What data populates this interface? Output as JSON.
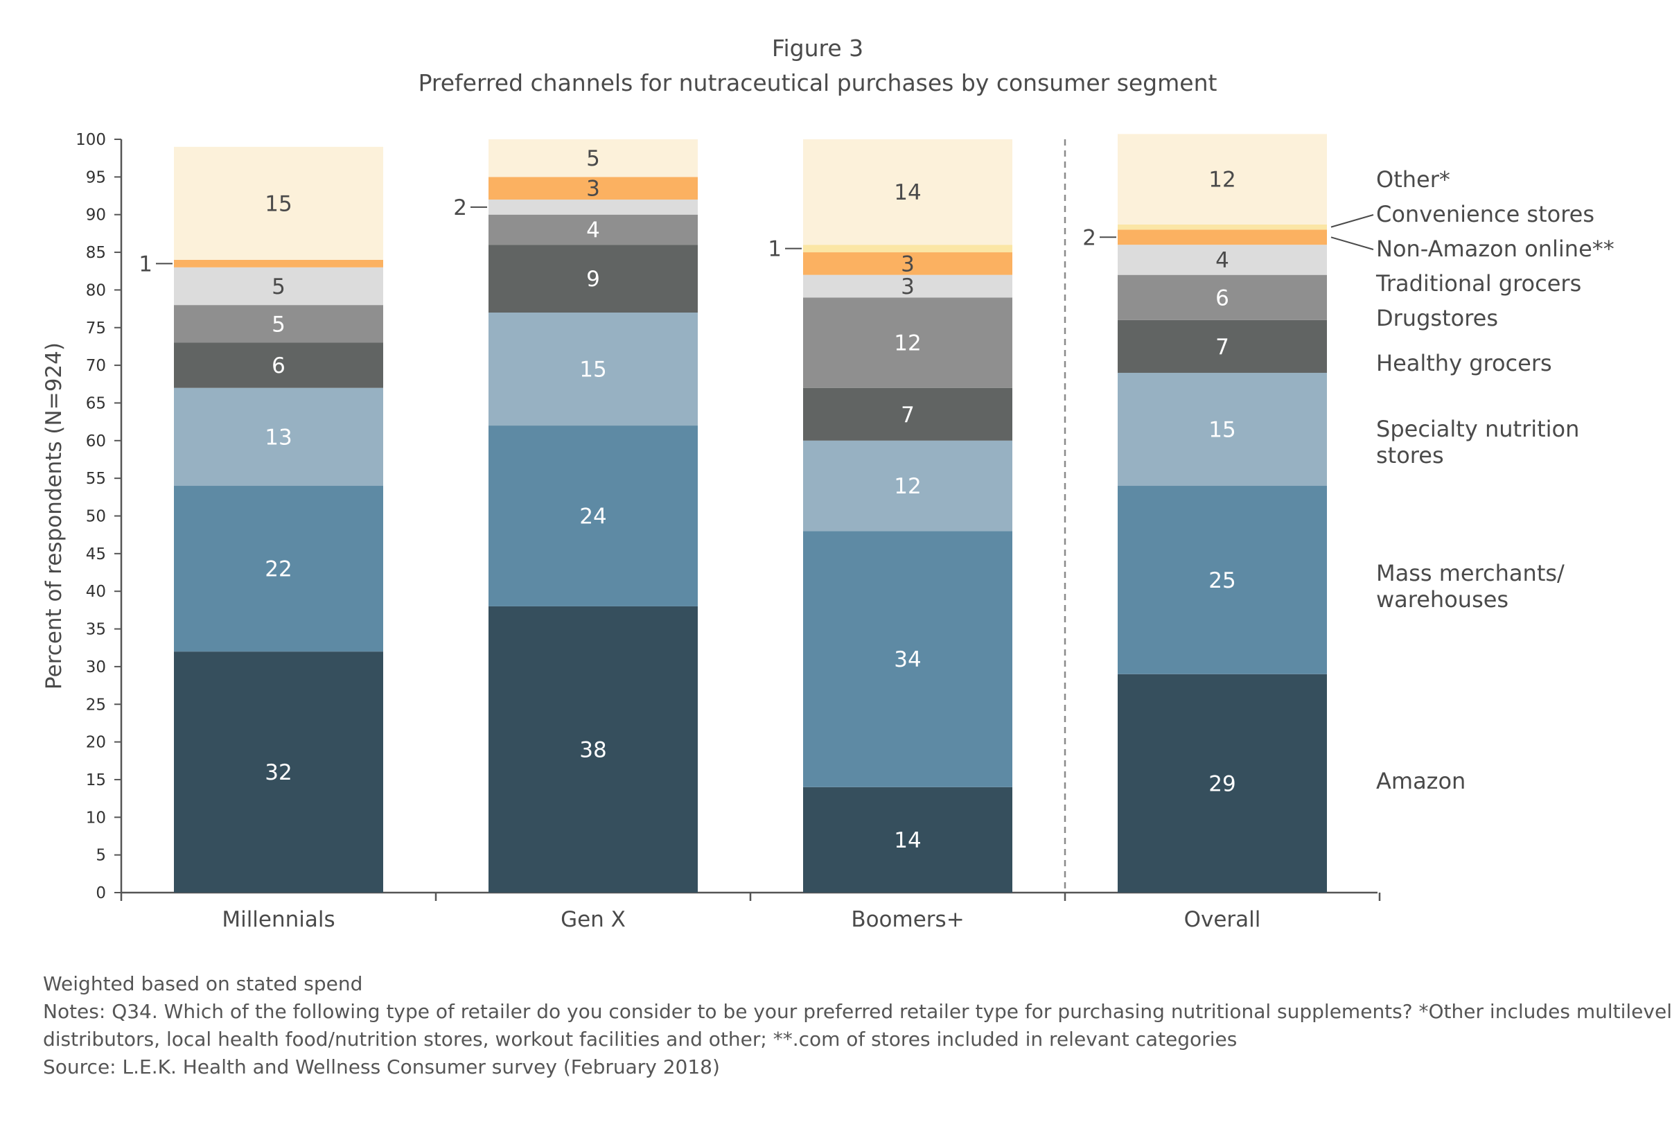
{
  "figure": {
    "label": "Figure 3",
    "title": "Preferred channels for nutraceutical purchases by consumer segment"
  },
  "chart_data": {
    "type": "bar",
    "stacked": true,
    "categories": [
      "Millennials",
      "Gen X",
      "Boomers+",
      "Overall"
    ],
    "ylabel": "Percent of respondents (N=924)",
    "ylim": [
      0,
      100
    ],
    "ytick_step": 5,
    "separator_before_category": "Overall",
    "series": [
      {
        "name": "Amazon",
        "color": "#364f5d",
        "label_color": "#ffffff",
        "values": [
          32,
          38,
          14,
          29
        ]
      },
      {
        "name": "Mass merchants/ warehouses",
        "color": "#5e8aa4",
        "label_color": "#ffffff",
        "values": [
          22,
          24,
          34,
          25
        ]
      },
      {
        "name": "Specialty nutrition stores",
        "color": "#97b1c2",
        "label_color": "#ffffff",
        "values": [
          13,
          15,
          12,
          15
        ]
      },
      {
        "name": "Healthy grocers",
        "color": "#616463",
        "label_color": "#ffffff",
        "values": [
          6,
          9,
          7,
          7
        ]
      },
      {
        "name": "Drugstores",
        "color": "#8f8f8f",
        "label_color": "#ffffff",
        "values": [
          5,
          4,
          12,
          6
        ]
      },
      {
        "name": "Traditional grocers",
        "color": "#dcdcdc",
        "label_color": "#4a4a4a",
        "values": [
          5,
          2,
          3,
          4
        ]
      },
      {
        "name": "Non-Amazon online**",
        "color": "#fbb161",
        "label_color": "#4a4a4a",
        "values": [
          1,
          3,
          3,
          2
        ]
      },
      {
        "name": "Convenience stores",
        "color": "#fbe6a5",
        "label_color": "#4a4a4a",
        "values": [
          0,
          0,
          1,
          0.7
        ]
      },
      {
        "name": "Other*",
        "color": "#fcf1da",
        "label_color": "#4a4a4a",
        "values": [
          15,
          5,
          14,
          12
        ]
      }
    ],
    "data_labels": [
      {
        "category": "Millennials",
        "series": "Amazon",
        "text": "32"
      },
      {
        "category": "Millennials",
        "series": "Mass merchants/ warehouses",
        "text": "22"
      },
      {
        "category": "Millennials",
        "series": "Specialty nutrition stores",
        "text": "13"
      },
      {
        "category": "Millennials",
        "series": "Healthy grocers",
        "text": "6"
      },
      {
        "category": "Millennials",
        "series": "Drugstores",
        "text": "5"
      },
      {
        "category": "Millennials",
        "series": "Traditional grocers",
        "text": "5"
      },
      {
        "category": "Millennials",
        "series": "Other*",
        "text": "15"
      },
      {
        "category": "Gen X",
        "series": "Amazon",
        "text": "38"
      },
      {
        "category": "Gen X",
        "series": "Mass merchants/ warehouses",
        "text": "24"
      },
      {
        "category": "Gen X",
        "series": "Specialty nutrition stores",
        "text": "15"
      },
      {
        "category": "Gen X",
        "series": "Healthy grocers",
        "text": "9"
      },
      {
        "category": "Gen X",
        "series": "Drugstores",
        "text": "4"
      },
      {
        "category": "Gen X",
        "series": "Non-Amazon online**",
        "text": "3"
      },
      {
        "category": "Gen X",
        "series": "Other*",
        "text": "5"
      },
      {
        "category": "Boomers+",
        "series": "Amazon",
        "text": "14"
      },
      {
        "category": "Boomers+",
        "series": "Mass merchants/ warehouses",
        "text": "34"
      },
      {
        "category": "Boomers+",
        "series": "Specialty nutrition stores",
        "text": "12"
      },
      {
        "category": "Boomers+",
        "series": "Healthy grocers",
        "text": "7"
      },
      {
        "category": "Boomers+",
        "series": "Drugstores",
        "text": "12"
      },
      {
        "category": "Boomers+",
        "series": "Traditional grocers",
        "text": "3"
      },
      {
        "category": "Boomers+",
        "series": "Non-Amazon online**",
        "text": "3"
      },
      {
        "category": "Boomers+",
        "series": "Other*",
        "text": "14"
      },
      {
        "category": "Overall",
        "series": "Amazon",
        "text": "29"
      },
      {
        "category": "Overall",
        "series": "Mass merchants/ warehouses",
        "text": "25"
      },
      {
        "category": "Overall",
        "series": "Specialty nutrition stores",
        "text": "15"
      },
      {
        "category": "Overall",
        "series": "Healthy grocers",
        "text": "7"
      },
      {
        "category": "Overall",
        "series": "Drugstores",
        "text": "6"
      },
      {
        "category": "Overall",
        "series": "Traditional grocers",
        "text": "4"
      },
      {
        "category": "Overall",
        "series": "Other*",
        "text": "12"
      }
    ],
    "callouts": [
      {
        "category": "Millennials",
        "series": "Non-Amazon online**",
        "text": "1"
      },
      {
        "category": "Gen X",
        "series": "Traditional grocers",
        "text": "2"
      },
      {
        "category": "Boomers+",
        "series": "Convenience stores",
        "text": "1"
      },
      {
        "category": "Overall",
        "series": "Non-Amazon online**",
        "text": "2"
      }
    ],
    "legend": {
      "placement": "right",
      "entries": [
        {
          "series": "Other*",
          "lines": [
            "Other*"
          ]
        },
        {
          "series": "Convenience stores",
          "lines": [
            "Convenience stores"
          ]
        },
        {
          "series": "Non-Amazon online**",
          "lines": [
            "Non-Amazon online**"
          ]
        },
        {
          "series": "Traditional grocers",
          "lines": [
            "Traditional grocers"
          ]
        },
        {
          "series": "Drugstores",
          "lines": [
            "Drugstores"
          ]
        },
        {
          "series": "Healthy grocers",
          "lines": [
            "Healthy grocers"
          ]
        },
        {
          "series": "Specialty nutrition stores",
          "lines": [
            "Specialty nutrition",
            "stores"
          ]
        },
        {
          "series": "Mass merchants/ warehouses",
          "lines": [
            "Mass merchants/",
            "warehouses"
          ]
        },
        {
          "series": "Amazon",
          "lines": [
            "Amazon"
          ]
        }
      ]
    }
  },
  "notes": {
    "weighting": "Weighted based on stated spend",
    "question_line1": "Notes: Q34. Which of the following type of retailer do you consider to be your preferred retailer type for purchasing nutritional supplements? *Other includes multilevel",
    "question_line2": "distributors, local health food/nutrition stores, workout facilities and other; **.com of stores included in relevant categories",
    "source": "Source: L.E.K. Health and Wellness Consumer survey (February 2018)"
  }
}
